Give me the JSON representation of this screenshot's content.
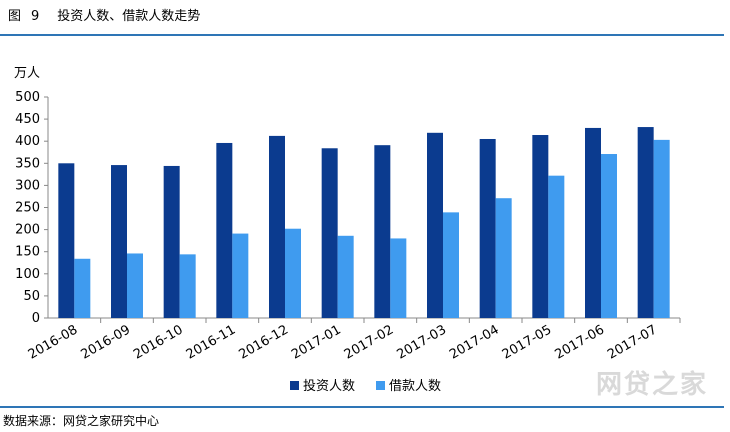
{
  "header": {
    "figure_label": "图",
    "figure_number": "9",
    "title": "投资人数、借款人数走势"
  },
  "footer": {
    "source": "数据来源：网贷之家研究中心"
  },
  "watermark": {
    "text": "网贷之家"
  },
  "colors": {
    "invest": "#0b3b8f",
    "borrow": "#3f9bef",
    "rule": "#2e75b6"
  },
  "chart_data": {
    "type": "bar",
    "unit_label": "万人",
    "categories": [
      "2016-08",
      "2016-09",
      "2016-10",
      "2016-11",
      "2016-12",
      "2017-01",
      "2017-02",
      "2017-03",
      "2017-04",
      "2017-05",
      "2017-06",
      "2017-07"
    ],
    "series": [
      {
        "name": "投资人数",
        "values": [
          350,
          346,
          344,
          396,
          412,
          384,
          391,
          419,
          405,
          414,
          430,
          432
        ]
      },
      {
        "name": "借款人数",
        "values": [
          134,
          146,
          144,
          191,
          202,
          186,
          180,
          239,
          271,
          322,
          371,
          403
        ]
      }
    ],
    "ylim": [
      0,
      500
    ],
    "yticks": [
      0,
      50,
      100,
      150,
      200,
      250,
      300,
      350,
      400,
      450,
      500
    ],
    "grid": false,
    "legend_position": "bottom"
  }
}
